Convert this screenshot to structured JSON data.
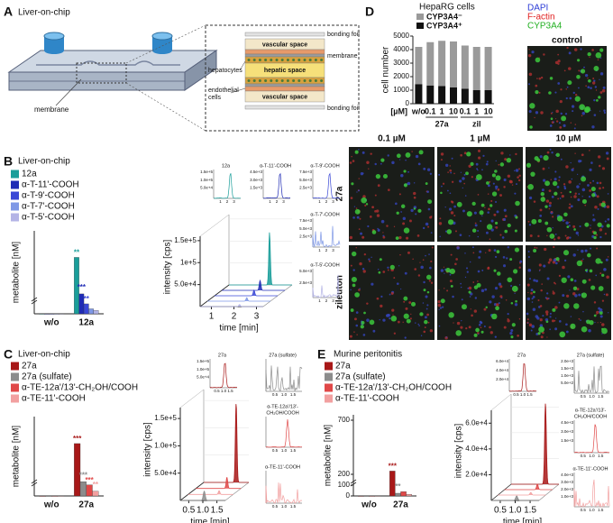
{
  "A": {
    "letter": "A",
    "title": "Liver-on-chip",
    "chip_label": "membrane",
    "layers": {
      "bonding_top": "bonding foil",
      "vascular_top": "vascular space",
      "membrane": "membrane",
      "hepatic": "hepatic space",
      "hepatocytes": "hepatocytes",
      "endothelial": [
        "endothelial",
        "cells"
      ],
      "vascular_bottom": "vascular space",
      "bonding_bottom": "bonding foil"
    }
  },
  "B": {
    "letter": "B",
    "title": "Liver-on-chip",
    "bar": {
      "type": "bar",
      "ylabel": "metabolite [nM]",
      "categories": [
        "w/o",
        "12a"
      ],
      "ylim": [
        0,
        50
      ],
      "series": [
        {
          "name": "12a",
          "color": "#1a9e9a",
          "values": [
            0,
            34
          ]
        },
        {
          "name": "α-T-11'-COOH",
          "color": "#1f2bb5",
          "values": [
            0,
            12
          ]
        },
        {
          "name": "α-T-9'-COOH",
          "color": "#3a48d6",
          "values": [
            0,
            6
          ]
        },
        {
          "name": "α-T-7'-COOH",
          "color": "#7f98e6",
          "values": [
            0,
            3
          ]
        },
        {
          "name": "α-T-5'-COOH",
          "color": "#b4b4e6",
          "values": [
            0,
            2
          ]
        }
      ],
      "significance": [
        "**",
        "***",
        "**"
      ]
    },
    "chrom": {
      "ylabel": "intensity [cps]",
      "xlabel": "time [min]",
      "ylim": [
        0,
        160000
      ],
      "yticks": [
        {
          "value": 50000,
          "label": "5.0e+4"
        },
        {
          "value": 100000,
          "label": "1e+5"
        },
        {
          "value": 150000,
          "label": "1.5e+5"
        }
      ],
      "xlim": [
        0.5,
        3.3
      ],
      "xticks": [
        1,
        2,
        3
      ]
    },
    "insets": [
      {
        "title": [
          "12a"
        ],
        "yticks": [
          "1.5e+5",
          "1.0e+5",
          "5.0e+4"
        ],
        "xticks": [
          "1",
          "2",
          "3"
        ]
      },
      {
        "title": [
          "α-T-11'-COOH"
        ],
        "yticks": [
          "4.5e+3",
          "3.0e+3",
          "1.5e+3"
        ],
        "xticks": [
          "1",
          "2",
          "3"
        ]
      },
      {
        "title": [
          "α-T-9'-COOH"
        ],
        "yticks": [
          "7.5e+3",
          "5.0e+3",
          "2.5e+3"
        ],
        "xticks": [
          "1",
          "2",
          "3"
        ]
      },
      {
        "title": [
          "α-T-7'-COOH"
        ],
        "yticks": [
          "7.5e+3",
          "5.0e+3",
          "2.5e+3"
        ],
        "xticks": [
          "1",
          "2",
          "3"
        ]
      },
      {
        "title": [
          "α-T-5'-COOH"
        ],
        "yticks": [
          "5.0e+3",
          "2.5e+3"
        ],
        "xticks": [
          "1",
          "2",
          "3"
        ]
      }
    ]
  },
  "C": {
    "letter": "C",
    "title": "Liver-on-chip",
    "bar": {
      "type": "bar",
      "ylabel": "metabolite [nM]",
      "categories": [
        "w/o",
        "27a"
      ],
      "ylim": [
        0,
        50
      ],
      "series": [
        {
          "name": "27a",
          "color": "#a81818",
          "values": [
            0,
            33
          ]
        },
        {
          "name": "27a (sulfate)",
          "color": "#8c8c8c",
          "values": [
            0,
            9
          ]
        },
        {
          "name": "α-TE-12a'/13'-CH₂OH/COOH",
          "color": "#e04848",
          "values": [
            0,
            7
          ]
        },
        {
          "name": "α-TE-11'-COOH",
          "color": "#f2a0a0",
          "values": [
            0,
            3
          ]
        }
      ],
      "significance": [
        "***",
        "***",
        "***",
        "**"
      ]
    },
    "chrom": {
      "ylabel": "intensity [cps]",
      "xlabel": "time [min]",
      "ylim": [
        0,
        170000
      ],
      "yticks": [
        {
          "value": 50000,
          "label": "5.0e+4"
        },
        {
          "value": 100000,
          "label": "1.0e+5"
        },
        {
          "value": 150000,
          "label": "1.5e+5"
        }
      ],
      "xlim": [
        0.2,
        1.8
      ],
      "xticks": [
        0.5,
        {
          "value": 1,
          "label": "1.0"
        },
        1.5
      ]
    },
    "insets": [
      {
        "title": [
          "27a"
        ],
        "yticks": [
          "1.5e+5",
          "1.0e+5",
          "5.0e+4"
        ],
        "xticks": [
          "0.5",
          "1.0",
          "1.5"
        ]
      },
      {
        "title": [
          "27a (sulfate)"
        ],
        "xticks": [
          "0.5",
          "1.0",
          "1.5"
        ]
      },
      {
        "title": [
          "α-TE-12a'/13'-",
          "CH₂OH/COOH"
        ],
        "xticks": [
          "0.5",
          "1.0",
          "1.5"
        ]
      },
      {
        "title": [
          "α-TE-11'-COOH"
        ],
        "xticks": [
          "0.5",
          "1.0",
          "1.5"
        ]
      }
    ]
  },
  "D": {
    "letter": "D",
    "chart": {
      "type": "bar",
      "stacked": true,
      "title": "HepaRG cells",
      "ylabel": "cell number",
      "unit": "[µM]",
      "categories": [
        "w/o",
        "0.1",
        "1",
        "10",
        "0.1",
        "1",
        "10"
      ],
      "group_labels": [
        "27a",
        "zil"
      ],
      "series": [
        {
          "name": "CYP3A4⁻",
          "color": "#9a9a9a",
          "values": [
            2750,
            3200,
            3350,
            3400,
            3200,
            3200,
            3200
          ]
        },
        {
          "name": "CYP3A4⁺",
          "color": "#111111",
          "values": [
            1450,
            1350,
            1300,
            1200,
            1100,
            1000,
            1000
          ]
        }
      ],
      "ylim": [
        0,
        5000
      ],
      "yticks": [
        0,
        1000,
        2000,
        3000,
        4000,
        5000
      ]
    },
    "stains": [
      {
        "name": "DAPI",
        "color": "#2b3bd6"
      },
      {
        "name": "F-actin",
        "color": "#e02020"
      },
      {
        "name": "CYP3A4",
        "color": "#22b022"
      }
    ],
    "control": "control",
    "columns": [
      "0.1 µM",
      "1 µM",
      "10 µM"
    ],
    "rows": [
      "27a",
      "zileuton"
    ]
  },
  "E": {
    "letter": "E",
    "title": "Murine peritonitis",
    "bar": {
      "type": "bar",
      "ylabel": "metabolite [nM]",
      "categories": [
        "w/o",
        "27a"
      ],
      "ylim": [
        0,
        750
      ],
      "yticks": [
        0,
        100,
        200,
        700
      ],
      "series": [
        {
          "name": "27a",
          "color": "#a81818",
          "values": [
            0,
            230
          ]
        },
        {
          "name": "27a (sulfate)",
          "color": "#8c8c8c",
          "values": [
            0,
            25
          ]
        },
        {
          "name": "α-TE-12a'/13'-CH₂OH/COOH",
          "color": "#e04848",
          "values": [
            0,
            40
          ]
        },
        {
          "name": "α-TE-11'-COOH",
          "color": "#f2a0a0",
          "values": [
            0,
            15
          ]
        }
      ],
      "significance": [
        "***",
        "**"
      ]
    },
    "chrom": {
      "ylabel": "intensity [cps]",
      "xlabel": "time [min]",
      "ylim": [
        0,
        70000
      ],
      "yticks": [
        {
          "value": 20000,
          "label": "2.0e+4"
        },
        {
          "value": 40000,
          "label": "4.0e+4"
        },
        {
          "value": 60000,
          "label": "6.0e+4"
        }
      ],
      "xlim": [
        0.2,
        1.8
      ],
      "xticks": [
        0.5,
        {
          "value": 1,
          "label": "1.0"
        },
        1.5
      ]
    },
    "insets": [
      {
        "title": [
          "27a"
        ],
        "yticks": [
          "6.0e+4",
          "4.0e+4",
          "2.0e+4"
        ],
        "xticks": [
          "0.5",
          "1.0",
          "1.5"
        ]
      },
      {
        "title": [
          "27a (sulfate)"
        ],
        "yticks": [
          "2.0e+3",
          "1.5e+3",
          "1.0e+3",
          "5.0e+2"
        ],
        "xticks": [
          "0.5",
          "1.0",
          "1.5"
        ]
      },
      {
        "title": [
          "α-TE-12a'/13'-",
          "CH₂OH/COOH"
        ],
        "yticks": [
          "4.5e+3",
          "3.0e+3",
          "1.5e+3"
        ],
        "xticks": [
          "0.5",
          "1.0",
          "1.5"
        ]
      },
      {
        "title": [
          "α-TE-11'-COOH"
        ],
        "yticks": [
          "4.0e+3",
          "3.0e+3",
          "2.0e+3",
          "1.0e+3"
        ],
        "xticks": [
          "0.5",
          "1.0",
          "1.5"
        ]
      }
    ]
  }
}
